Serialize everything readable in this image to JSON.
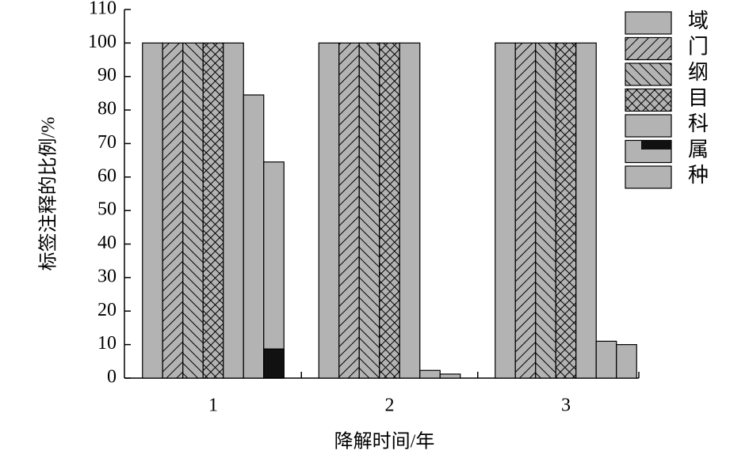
{
  "chart_data": {
    "type": "bar",
    "categories": [
      "1",
      "2",
      "3"
    ],
    "x_label": "降解时间/年",
    "y_label": "标签注释的比例/%",
    "ylim": [
      0,
      110
    ],
    "yticks": [
      0,
      10,
      20,
      30,
      40,
      50,
      60,
      70,
      80,
      90,
      100,
      110
    ],
    "legend": "right",
    "series": [
      {
        "name": "域",
        "color": "#b3b3b3",
        "hatch": null,
        "values": [
          100,
          100,
          100
        ]
      },
      {
        "name": "门",
        "color": "#b3b3b3",
        "hatch": "/",
        "values": [
          100,
          100,
          100
        ]
      },
      {
        "name": "纲",
        "color": "#b3b3b3",
        "hatch": "\\",
        "values": [
          100,
          100,
          100
        ]
      },
      {
        "name": "目",
        "color": "#b3b3b3",
        "hatch": "x",
        "values": [
          100,
          100,
          100
        ]
      },
      {
        "name": "科",
        "color": "#b3b3b3",
        "hatch": null,
        "values": [
          100,
          100,
          100
        ]
      },
      {
        "name": "属",
        "color": "#b3b3b3",
        "hatch": null,
        "values": [
          84.5,
          2.3,
          11
        ]
      },
      {
        "name": "种",
        "color": "#b3b3b3",
        "hatch": null,
        "values": [
          64.5,
          1.2,
          10
        ],
        "overlay": [
          8.7,
          null,
          null
        ],
        "overlay_color": "#111111"
      }
    ]
  }
}
